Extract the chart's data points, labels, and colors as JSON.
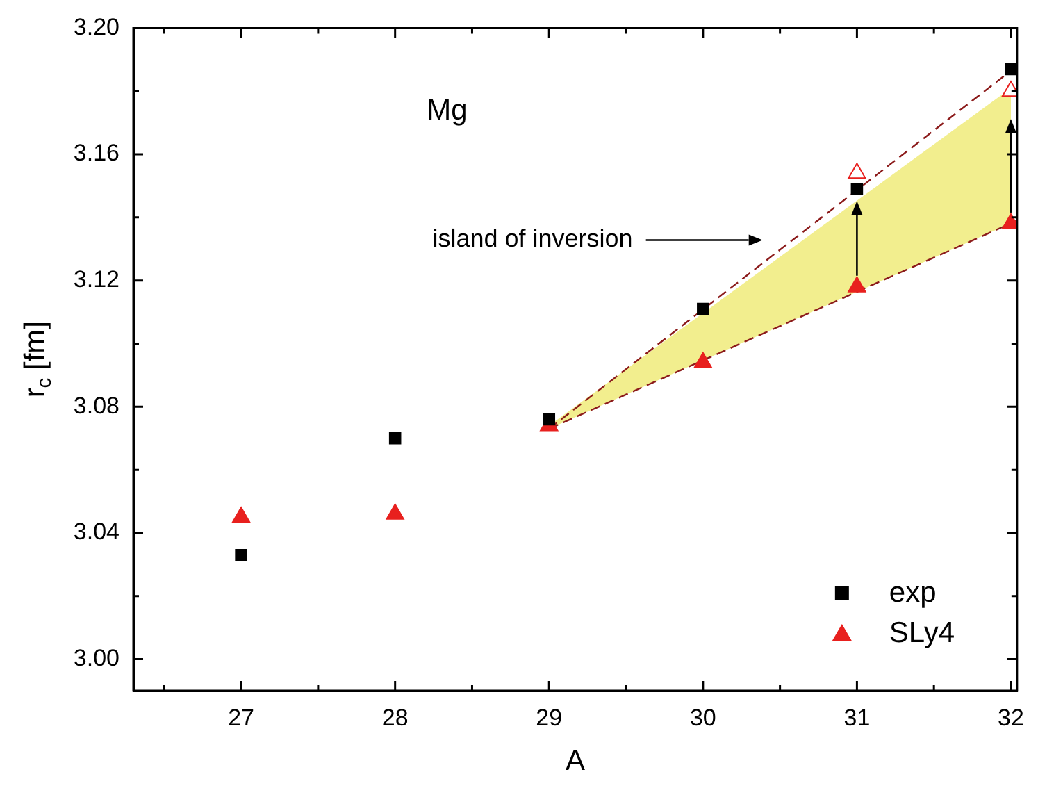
{
  "chart_data": {
    "type": "scatter",
    "xlabel": "A",
    "ylabel": "r$_{c}$ [fm]",
    "annotations": [
      "Mg",
      "island of inversion"
    ],
    "xlim": [
      26.3,
      32.04
    ],
    "xticks": [
      {
        "value": 26.5,
        "label": null
      },
      27,
      {
        "value": 27.5,
        "label": null
      },
      28,
      {
        "value": 28.5,
        "label": null
      },
      29,
      {
        "value": 29.5,
        "label": null
      },
      30,
      {
        "value": 30.5,
        "label": null
      },
      31,
      {
        "value": 31.5,
        "label": null
      },
      32
    ],
    "ylim": [
      2.99,
      3.2
    ],
    "yticks": [
      {
        "value": 3,
        "label": "3.00"
      },
      {
        "value": 3.02,
        "label": null
      },
      {
        "value": 3.04,
        "label": "3.04"
      },
      {
        "value": 3.06,
        "label": null
      },
      {
        "value": 3.08,
        "label": "3.08"
      },
      {
        "value": 3.1,
        "label": null
      },
      {
        "value": 3.12,
        "label": "3.12"
      },
      {
        "value": 3.14,
        "label": null
      },
      {
        "value": 3.16,
        "label": "3.16"
      },
      {
        "value": 3.18,
        "label": null
      },
      {
        "value": 3.2,
        "label": "3.20"
      }
    ],
    "legend": "bottom right",
    "series": [
      {
        "name": "exp",
        "marker": "square",
        "color": "#000000",
        "x": [
          27,
          28,
          29,
          30,
          31,
          32
        ],
        "values": [
          3.033,
          3.07,
          3.076,
          3.111,
          3.149,
          3.187
        ]
      },
      {
        "name": "SLy4",
        "marker": "triangle",
        "color": "#e8201e",
        "x": [
          27,
          28,
          29,
          30,
          31,
          32
        ],
        "values": [
          3.045,
          3.046,
          3.074,
          3.094,
          3.118,
          3.138
        ]
      },
      {
        "marker": "triangle",
        "color": "#e8201e",
        "x": [
          31,
          32
        ],
        "values": [
          3.154,
          3.18
        ]
      },
      {
        "type": "area",
        "color": "#f2ee8e",
        "x": [
          29,
          32
        ],
        "values": [
          3.074,
          3.181
        ]
      },
      {
        "type": "line",
        "marker": "none",
        "line_style": "dashed",
        "color": "#8b1a1a",
        "x": [
          29,
          32.04
        ],
        "values": [
          3.073,
          3.188
        ]
      },
      {
        "type": "line",
        "marker": "none",
        "line_style": "dashed",
        "color": "#8b1a1a",
        "x": [
          29,
          32.04
        ],
        "values": [
          3.073,
          3.139
        ]
      }
    ]
  }
}
